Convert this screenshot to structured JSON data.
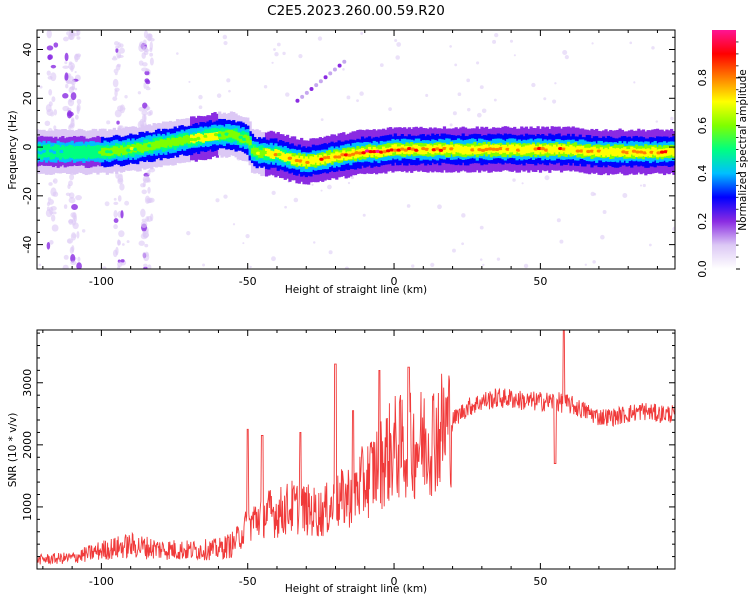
{
  "title": "C2E5.2023.260.00.59.R20",
  "chart_data": [
    {
      "type": "heatmap",
      "xlabel": "Height of straight line (km)",
      "ylabel": "Frequency (Hz)",
      "xlim": [
        -122,
        96
      ],
      "ylim": [
        -50,
        48
      ],
      "xticks": [
        -100,
        -50,
        0,
        50
      ],
      "yticks": [
        -40,
        -20,
        0,
        20,
        40
      ],
      "colorbar": {
        "label": "Normalized spectral amplitude",
        "range": [
          0,
          1
        ],
        "ticks": [
          0.0,
          0.2,
          0.4,
          0.6,
          0.8
        ],
        "colors": [
          "#ffffff",
          "#dcc8f5",
          "#8a2be2",
          "#0000ff",
          "#00bfff",
          "#00ff80",
          "#7fff00",
          "#ffff00",
          "#ff8000",
          "#ff0000",
          "#ff1493"
        ]
      },
      "ridge": {
        "x": [
          -122,
          -110,
          -100,
          -90,
          -80,
          -70,
          -60,
          -55,
          -50,
          -48,
          -40,
          -35,
          -30,
          -25,
          -20,
          -15,
          -10,
          -5,
          0,
          10,
          20,
          30,
          40,
          50,
          60,
          70,
          80,
          96
        ],
        "freq": [
          -2,
          -2,
          -2,
          -1,
          1,
          3,
          5,
          5,
          3,
          -2,
          -3,
          -5,
          -6,
          -5,
          -4,
          -3,
          -2,
          -2,
          -1,
          -1,
          -1,
          -1,
          -1,
          -1,
          -1,
          -2,
          -2,
          -2
        ],
        "amplitude": [
          0.45,
          0.5,
          0.55,
          0.6,
          0.6,
          0.65,
          0.65,
          0.6,
          0.55,
          0.6,
          0.7,
          0.75,
          0.75,
          0.8,
          0.85,
          0.85,
          0.9,
          0.9,
          0.85,
          0.85,
          0.8,
          0.75,
          0.75,
          0.8,
          0.8,
          0.75,
          0.75,
          0.85
        ]
      },
      "vertical_streaks_x": [
        -117,
        -111,
        -109,
        -94,
        -85,
        -84
      ],
      "diagonal_feature": {
        "x": [
          -33,
          -17
        ],
        "freq": [
          19,
          35
        ]
      }
    },
    {
      "type": "line",
      "xlabel": "Height of straight line (km)",
      "ylabel": "SNR (10 * v/v)",
      "xlim": [
        -122,
        96
      ],
      "ylim": [
        0,
        3850
      ],
      "xticks": [
        -100,
        -50,
        0,
        50
      ],
      "yticks": [
        1000,
        2000,
        3000
      ],
      "color": "#f03a3a",
      "trend": {
        "x": [
          -122,
          -110,
          -100,
          -90,
          -80,
          -70,
          -60,
          -55,
          -50,
          -45,
          -40,
          -35,
          -30,
          -25,
          -20,
          -15,
          -10,
          -5,
          0,
          5,
          10,
          15,
          20,
          25,
          30,
          35,
          40,
          45,
          50,
          55,
          60,
          65,
          70,
          75,
          80,
          85,
          90,
          96
        ],
        "y": [
          150,
          180,
          300,
          380,
          320,
          300,
          320,
          400,
          700,
          900,
          900,
          1000,
          950,
          900,
          1050,
          1200,
          1400,
          1700,
          1950,
          1950,
          2050,
          2200,
          2400,
          2600,
          2700,
          2750,
          2750,
          2700,
          2700,
          2700,
          2650,
          2550,
          2450,
          2450,
          2500,
          2550,
          2500,
          2500
        ]
      },
      "spikes": [
        {
          "x": -50,
          "y": 2250
        },
        {
          "x": -45,
          "y": 2150
        },
        {
          "x": -32,
          "y": 2200
        },
        {
          "x": -20,
          "y": 3300
        },
        {
          "x": -14,
          "y": 2550
        },
        {
          "x": -5,
          "y": 3200
        },
        {
          "x": 5,
          "y": 3250
        },
        {
          "x": 58,
          "y": 3850
        },
        {
          "x": 55,
          "y": 1700
        }
      ]
    }
  ]
}
